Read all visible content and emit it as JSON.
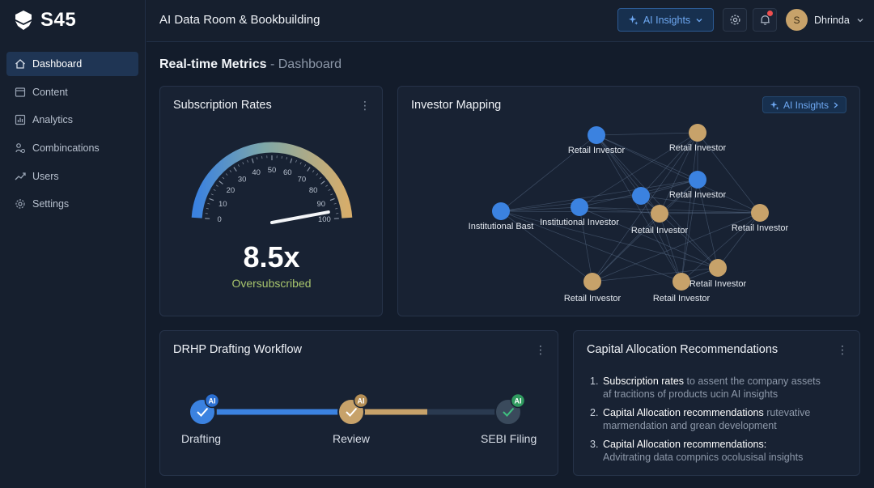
{
  "app": {
    "logo_text": "S45",
    "title": "AI Data Room & Bookbuilding"
  },
  "header": {
    "ai_insights_label": "AI Insights",
    "user_initial": "S",
    "user_name": "Dhrinda"
  },
  "sidebar": {
    "items": [
      {
        "label": "Dashboard",
        "icon": "home-icon",
        "active": true
      },
      {
        "label": "Content",
        "icon": "file-icon",
        "active": false
      },
      {
        "label": "Analytics",
        "icon": "bar-chart-icon",
        "active": false
      },
      {
        "label": "Combincations",
        "icon": "link-icon",
        "active": false
      },
      {
        "label": "Users",
        "icon": "trend-icon",
        "active": false
      },
      {
        "label": "Settings",
        "icon": "gear-icon",
        "active": false
      }
    ]
  },
  "page": {
    "title": "Real-time Metrics",
    "subtitle": "Dashboard"
  },
  "subscription": {
    "title": "Subscription Rates",
    "value": "8.5x",
    "status": "Oversubscribed",
    "gauge_ticks": [
      "0",
      "10",
      "20",
      "30",
      "40",
      "50",
      "60",
      "70",
      "80",
      "90",
      "100"
    ],
    "needle_value": 96
  },
  "investor_mapping": {
    "title": "Investor Mapping",
    "ai_label": "AI Insights",
    "nodes": [
      {
        "label": "Retail Investor",
        "kind": "blue"
      },
      {
        "label": "Retail Investor",
        "kind": "gold"
      },
      {
        "label": "Retail Investor",
        "kind": "blue"
      },
      {
        "label": "Institutional Bast",
        "kind": "blue"
      },
      {
        "label": "Institutional Investor",
        "kind": "blue"
      },
      {
        "label": "",
        "kind": "blue"
      },
      {
        "label": "Retail Investor",
        "kind": "gold"
      },
      {
        "label": "Retail Investor",
        "kind": "gold"
      },
      {
        "label": "Retail Investor",
        "kind": "gold"
      },
      {
        "label": "Retail Investor",
        "kind": "gold"
      },
      {
        "label": "Retail Investor",
        "kind": "gold"
      }
    ]
  },
  "workflow": {
    "title": "DRHP Drafting Workflow",
    "ai_badge": "AI",
    "steps": [
      {
        "label": "Drafting",
        "color": "#3b82e0"
      },
      {
        "label": "Review",
        "color": "#c7a26a"
      },
      {
        "label": "SEBI Filing",
        "color": "#3a4a5c"
      }
    ],
    "progress_fraction": 0.58
  },
  "recommendations": {
    "title": "Capital Allocation Recommendations",
    "items": [
      {
        "num": "1.",
        "highlight": "Subscription rates",
        "rest": " to assent the company assets",
        "line2": "af tracitions of products ucin AI insights"
      },
      {
        "num": "2.",
        "highlight": "Capital Allocation recommendations",
        "rest": " rutevative",
        "line2": "marmendation and grean development"
      },
      {
        "num": "3.",
        "highlight": "Capital Allocation recommendations:",
        "rest": "",
        "line2": "Advitrating data compnics ocolusisal insights"
      }
    ]
  },
  "colors": {
    "accent_blue": "#3b82e0",
    "accent_gold": "#c7a26a",
    "success_green": "#a7c46d"
  }
}
